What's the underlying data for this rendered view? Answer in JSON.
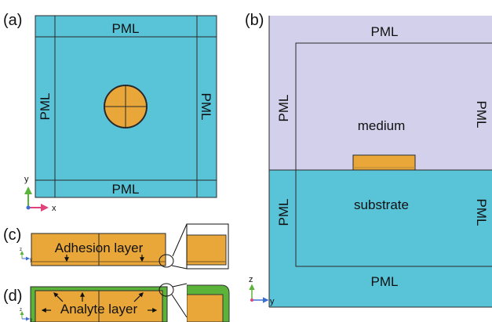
{
  "colors": {
    "substrate_blue": "#59C3D8",
    "medium_lavender": "#D3D0EC",
    "gold": "#E9A73A",
    "adhesion_line": "#B88A33",
    "analyte_green": "#5BB339",
    "axis_y": "#5BB339",
    "axis_x": "#E0437B",
    "outline": "#2A2A2A"
  },
  "panel_a": {
    "letter": "(a)",
    "pml_top": "PML",
    "pml_bottom": "PML",
    "pml_left": "PML",
    "pml_right": "PML",
    "axis_y": "y",
    "axis_x": "x"
  },
  "panel_b": {
    "letter": "(b)",
    "pml_top": "PML",
    "pml_bottom": "PML",
    "pml_left_upper": "PML",
    "pml_right_upper": "PML",
    "pml_left_lower": "PML",
    "pml_right_lower": "PML",
    "medium": "medium",
    "substrate": "substrate",
    "axis_z": "z",
    "axis_y": "y"
  },
  "panel_c": {
    "letter": "(c)",
    "label": "Adhesion layer",
    "axis_z": "z",
    "axis_y": "y"
  },
  "panel_d": {
    "letter": "(d)",
    "label": "Analyte layer",
    "axis_z": "z",
    "axis_y": "y"
  }
}
